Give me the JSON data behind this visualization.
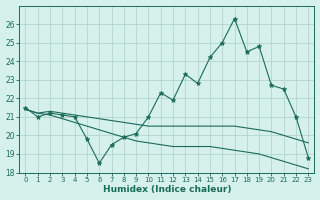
{
  "title": "",
  "xlabel": "Humidex (Indice chaleur)",
  "bg_color": "#d6f0ec",
  "grid_color": "#b8d8d2",
  "line_color": "#1a6b5a",
  "x": [
    0,
    1,
    2,
    3,
    4,
    5,
    6,
    7,
    8,
    9,
    10,
    11,
    12,
    13,
    14,
    15,
    16,
    17,
    18,
    19,
    20,
    21,
    22,
    23
  ],
  "series1": [
    21.5,
    21.0,
    21.2,
    21.1,
    21.0,
    19.8,
    18.5,
    19.5,
    19.9,
    20.1,
    21.0,
    22.3,
    21.9,
    23.3,
    22.8,
    24.2,
    25.0,
    26.3,
    24.5,
    24.8,
    22.7,
    22.5,
    21.0,
    18.8
  ],
  "series2": [
    21.4,
    21.2,
    21.3,
    21.2,
    21.1,
    21.0,
    20.9,
    20.8,
    20.7,
    20.6,
    20.5,
    20.5,
    20.5,
    20.5,
    20.5,
    20.5,
    20.5,
    20.5,
    20.4,
    20.3,
    20.2,
    20.0,
    19.8,
    19.6
  ],
  "series3": [
    21.4,
    21.2,
    21.1,
    20.9,
    20.7,
    20.5,
    20.3,
    20.1,
    19.9,
    19.7,
    19.6,
    19.5,
    19.4,
    19.4,
    19.4,
    19.4,
    19.3,
    19.2,
    19.1,
    19.0,
    18.8,
    18.6,
    18.4,
    18.2
  ],
  "ylim": [
    18,
    27
  ],
  "yticks": [
    18,
    19,
    20,
    21,
    22,
    23,
    24,
    25,
    26
  ],
  "xlim": [
    -0.5,
    23.5
  ],
  "xticks": [
    0,
    1,
    2,
    3,
    4,
    5,
    6,
    7,
    8,
    9,
    10,
    11,
    12,
    13,
    14,
    15,
    16,
    17,
    18,
    19,
    20,
    21,
    22,
    23
  ]
}
